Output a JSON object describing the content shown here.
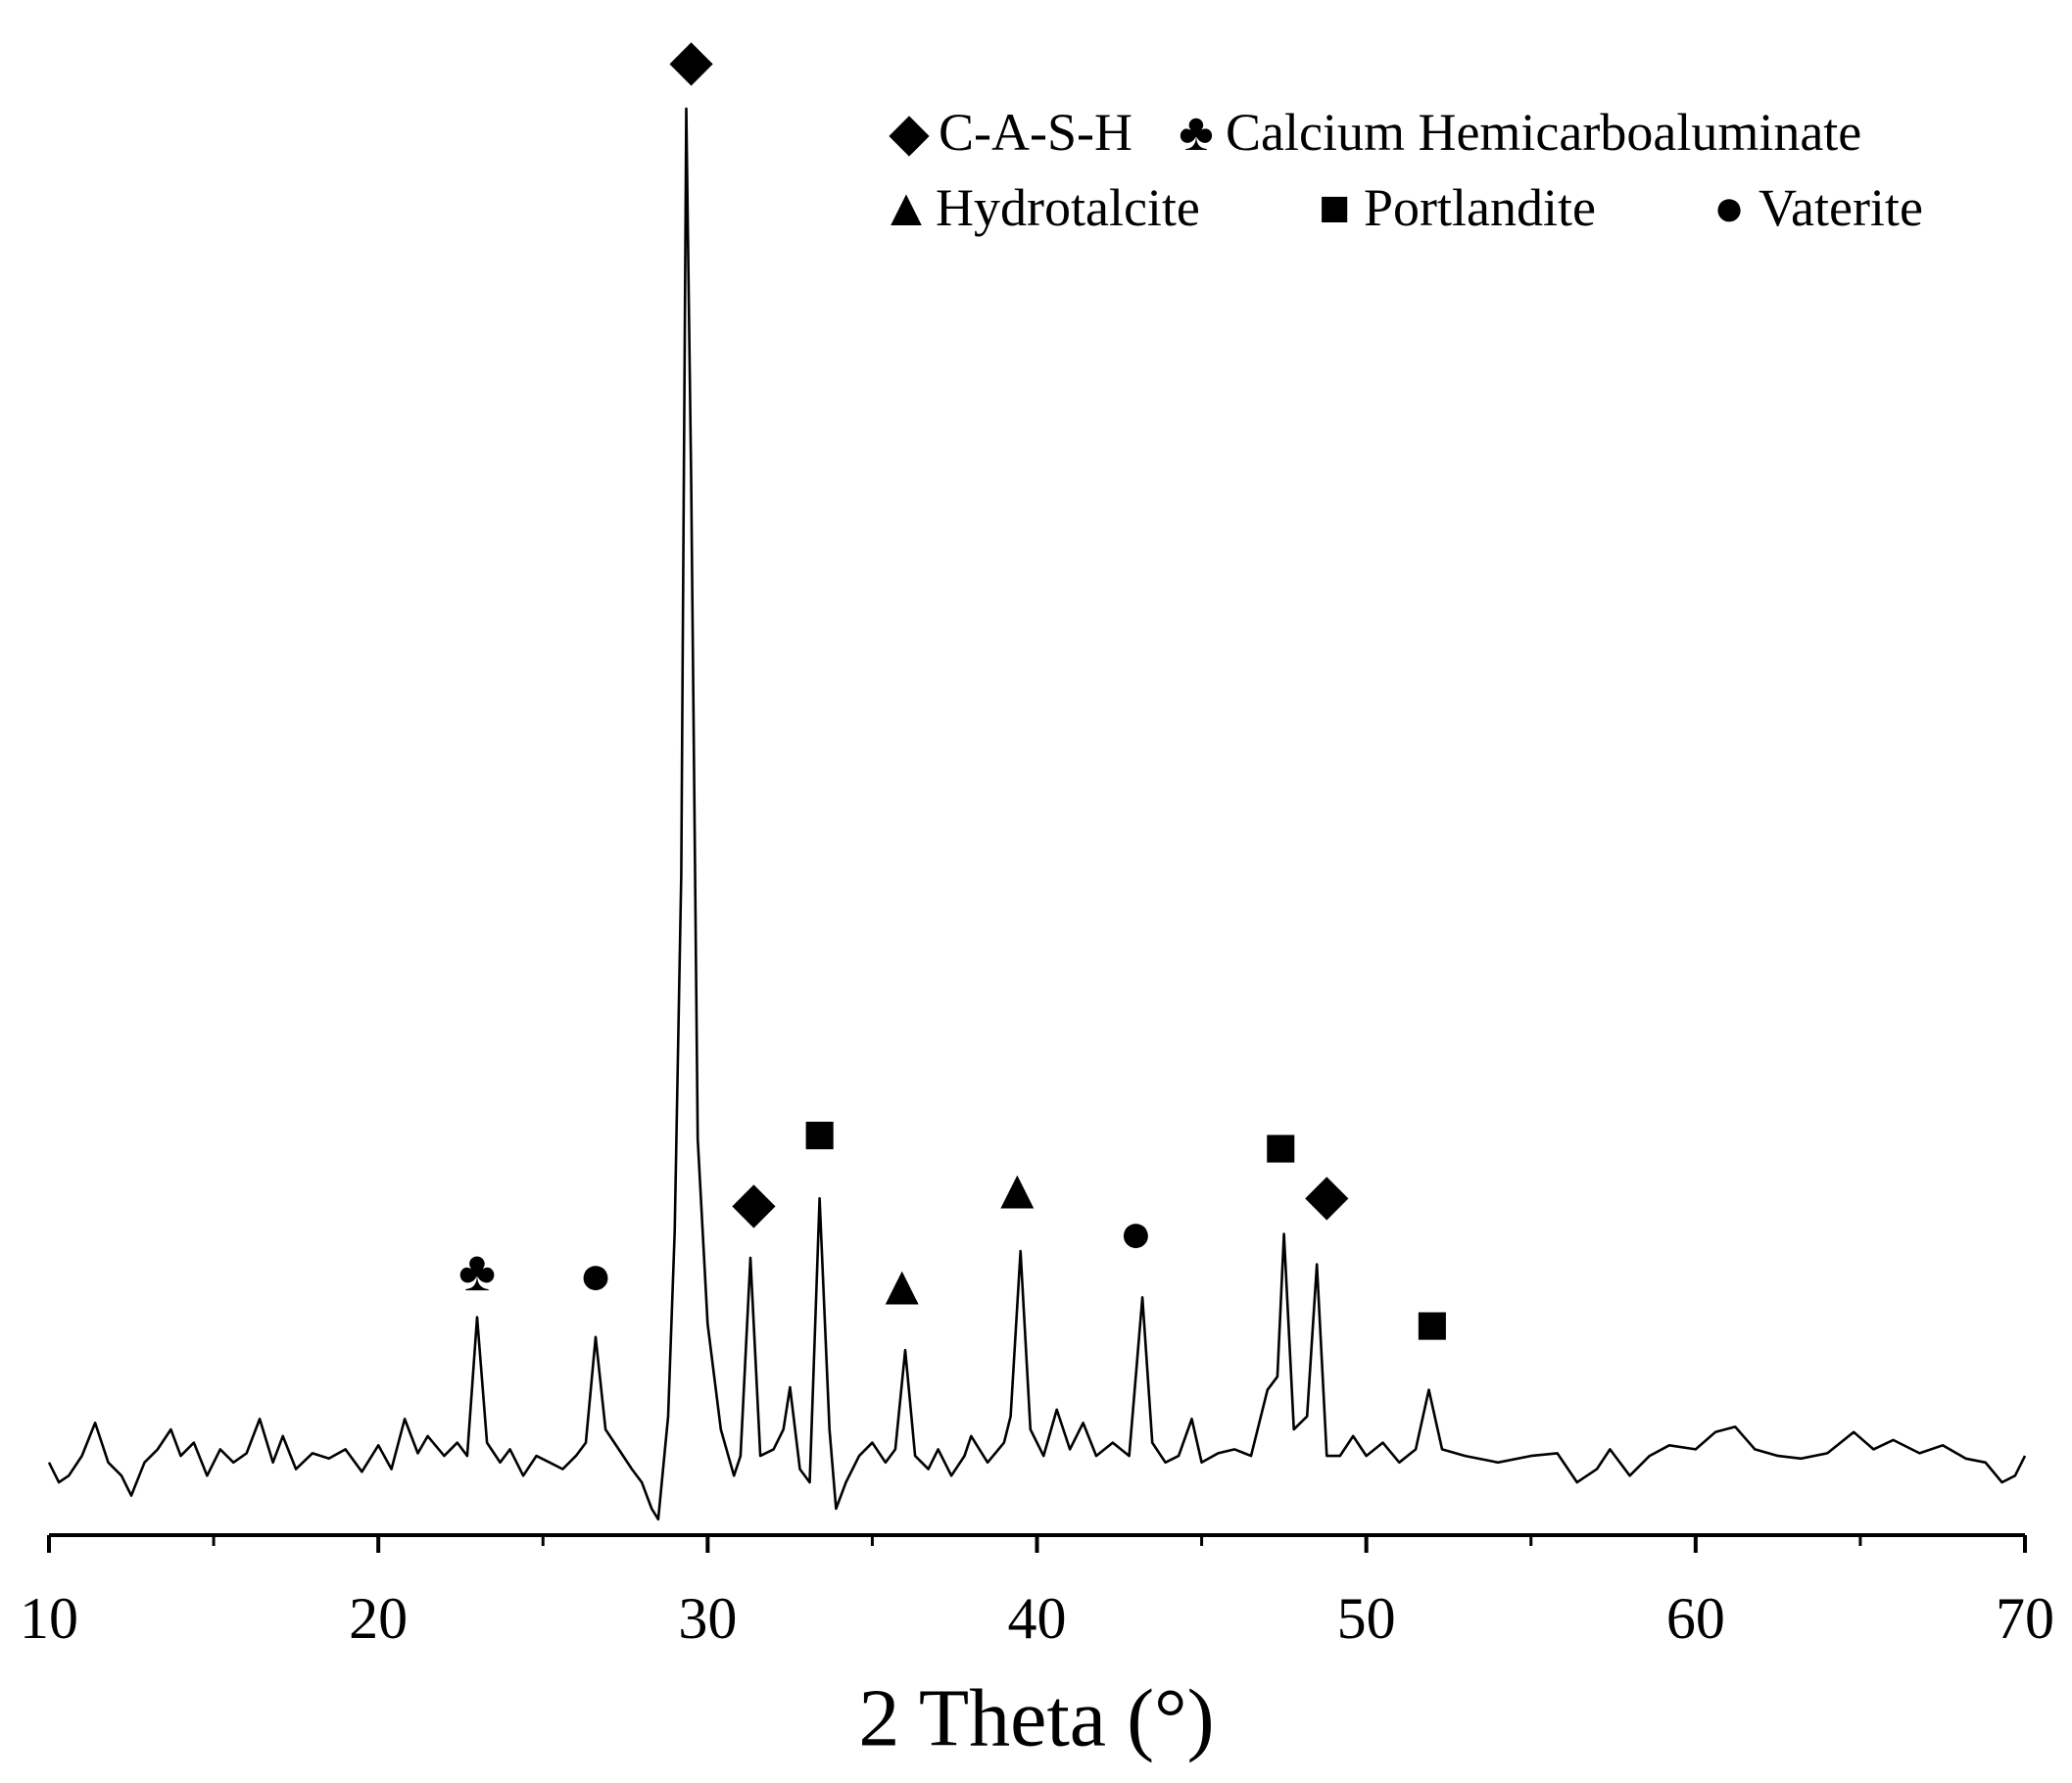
{
  "chart_data": {
    "type": "line",
    "x_label": "2 Theta (°)",
    "xlim": [
      10,
      70
    ],
    "xticks": [
      10,
      20,
      30,
      40,
      50,
      60,
      70
    ],
    "xminorticks": [
      15,
      25,
      35,
      45,
      55,
      65
    ],
    "ylim": [
      0,
      1140
    ],
    "color": "#000000",
    "x": [
      10.0,
      10.3,
      10.6,
      11.0,
      11.4,
      11.8,
      12.2,
      12.5,
      12.9,
      13.3,
      13.7,
      14.0,
      14.4,
      14.8,
      15.2,
      15.6,
      16.0,
      16.4,
      16.8,
      17.1,
      17.5,
      18.0,
      18.5,
      19.0,
      19.5,
      20.0,
      20.4,
      20.8,
      21.2,
      21.5,
      22.0,
      22.4,
      22.7,
      23.0,
      23.3,
      23.7,
      24.0,
      24.4,
      24.8,
      25.2,
      25.6,
      26.0,
      26.3,
      26.6,
      26.9,
      27.3,
      27.7,
      28.0,
      28.3,
      28.5,
      28.8,
      29.0,
      29.2,
      29.35,
      29.5,
      29.7,
      30.0,
      30.4,
      30.8,
      31.0,
      31.3,
      31.6,
      32.0,
      32.3,
      32.5,
      32.8,
      33.1,
      33.4,
      33.7,
      33.9,
      34.2,
      34.6,
      35.0,
      35.4,
      35.7,
      36.0,
      36.3,
      36.7,
      37.0,
      37.4,
      37.8,
      38.0,
      38.5,
      39.0,
      39.2,
      39.5,
      39.8,
      40.2,
      40.6,
      41.0,
      41.4,
      41.8,
      42.3,
      42.8,
      43.2,
      43.5,
      43.9,
      44.3,
      44.7,
      45.0,
      45.5,
      46.0,
      46.5,
      47.0,
      47.3,
      47.5,
      47.8,
      48.2,
      48.5,
      48.8,
      49.2,
      49.6,
      50.0,
      50.5,
      51.0,
      51.5,
      51.9,
      52.3,
      53.0,
      54.0,
      55.0,
      55.8,
      56.4,
      57.0,
      57.4,
      58.0,
      58.6,
      59.2,
      60.0,
      60.6,
      61.2,
      61.8,
      62.5,
      63.2,
      64.0,
      64.8,
      65.4,
      66.0,
      66.8,
      67.5,
      68.2,
      68.8,
      69.3,
      69.7,
      70.0
    ],
    "values": [
      55,
      40,
      45,
      60,
      85,
      55,
      45,
      30,
      55,
      65,
      80,
      60,
      70,
      45,
      65,
      55,
      62,
      88,
      55,
      75,
      50,
      62,
      58,
      65,
      48,
      68,
      50,
      88,
      62,
      75,
      60,
      70,
      60,
      165,
      70,
      55,
      65,
      45,
      60,
      55,
      50,
      60,
      70,
      150,
      80,
      65,
      50,
      40,
      20,
      12,
      90,
      230,
      500,
      1080,
      800,
      300,
      160,
      80,
      45,
      60,
      210,
      60,
      65,
      80,
      112,
      50,
      40,
      255,
      80,
      20,
      40,
      60,
      70,
      55,
      65,
      140,
      60,
      50,
      65,
      45,
      60,
      75,
      55,
      70,
      90,
      215,
      80,
      60,
      95,
      65,
      85,
      60,
      70,
      60,
      180,
      70,
      55,
      60,
      88,
      55,
      62,
      65,
      60,
      110,
      120,
      228,
      80,
      90,
      205,
      60,
      60,
      75,
      60,
      70,
      55,
      65,
      110,
      65,
      60,
      55,
      60,
      62,
      40,
      50,
      65,
      45,
      60,
      68,
      65,
      78,
      82,
      65,
      60,
      58,
      62,
      78,
      65,
      72,
      62,
      68,
      58,
      55,
      40,
      45,
      60
    ],
    "annotations": [
      {
        "x": 23.0,
        "y": 200,
        "label": "♣"
      },
      {
        "x": 26.6,
        "y": 197,
        "label": "●"
      },
      {
        "x": 29.5,
        "y": 1117,
        "label": "◆"
      },
      {
        "x": 31.4,
        "y": 252,
        "label": "◆"
      },
      {
        "x": 33.4,
        "y": 304,
        "label": "■"
      },
      {
        "x": 35.9,
        "y": 189,
        "label": "▲"
      },
      {
        "x": 39.4,
        "y": 262,
        "label": "▲"
      },
      {
        "x": 43.0,
        "y": 229,
        "label": "●"
      },
      {
        "x": 47.4,
        "y": 294,
        "label": "■"
      },
      {
        "x": 48.8,
        "y": 258,
        "label": "◆"
      },
      {
        "x": 52.0,
        "y": 160,
        "label": "■"
      }
    ],
    "legend": [
      {
        "symbol": "◆",
        "name": "C-A-S-H"
      },
      {
        "symbol": "♣",
        "name": "Calcium Hemicarboaluminate"
      },
      {
        "symbol": "▲",
        "name": "Hydrotalcite"
      },
      {
        "symbol": "■",
        "name": "Portlandite"
      },
      {
        "symbol": "●",
        "name": "Vaterite"
      }
    ]
  }
}
